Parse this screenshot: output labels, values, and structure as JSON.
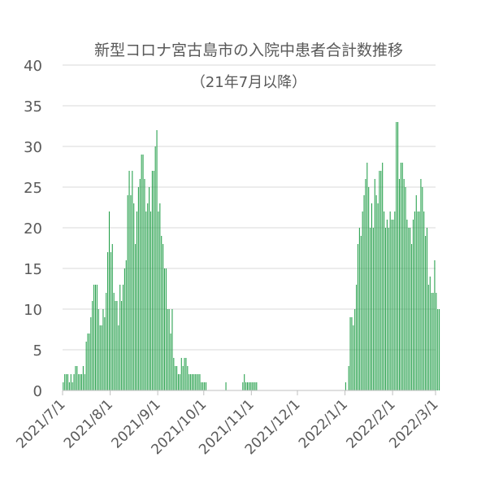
{
  "chart_data": {
    "type": "bar",
    "title": "新型コロナ宮古島市の入院中患者合計数推移",
    "subtitle": "（21年7月以降）",
    "xlabel": "",
    "ylabel": "",
    "ylim": [
      0,
      40
    ],
    "y_ticks": [
      "0",
      "5",
      "10",
      "15",
      "20",
      "25",
      "30",
      "35",
      "40"
    ],
    "x_ticks": [
      "2021/7/1",
      "2021/8/1",
      "2021/9/1",
      "2021/10/1",
      "2021/11/1",
      "2021/12/1",
      "2022/1/1",
      "2022/2/1",
      "2022/3/1"
    ],
    "grid": "horizontal",
    "bar_color": "#1f9d46",
    "x_start_date": "2021-07-01",
    "values": [
      1,
      2,
      2,
      2,
      1,
      2,
      1,
      2,
      3,
      3,
      2,
      2,
      2,
      3,
      2,
      6,
      7,
      7,
      9,
      11,
      13,
      13,
      13,
      10,
      8,
      8,
      10,
      9,
      12,
      17,
      22,
      17,
      18,
      12,
      11,
      11,
      8,
      13,
      11,
      13,
      15,
      16,
      24,
      27,
      24,
      27,
      23,
      18,
      22,
      25,
      26,
      29,
      29,
      26,
      22,
      23,
      25,
      22,
      27,
      27,
      30,
      32,
      22,
      23,
      19,
      18,
      15,
      15,
      10,
      10,
      7,
      10,
      4,
      3,
      3,
      2,
      2,
      4,
      3,
      4,
      4,
      3,
      2,
      2,
      2,
      2,
      2,
      2,
      2,
      2,
      1,
      1,
      1,
      1,
      0,
      0,
      0,
      0,
      0,
      0,
      0,
      0,
      0,
      0,
      0,
      0,
      1,
      0,
      0,
      0,
      0,
      0,
      0,
      0,
      0,
      0,
      0,
      1,
      2,
      1,
      1,
      1,
      1,
      1,
      1,
      1,
      1,
      0,
      0,
      0,
      0,
      0,
      0,
      0,
      0,
      0,
      0,
      0,
      0,
      0,
      0,
      0,
      0,
      0,
      0,
      0,
      0,
      0,
      0,
      0,
      0,
      0,
      0,
      0,
      0,
      0,
      0,
      0,
      0,
      0,
      0,
      0,
      0,
      0,
      0,
      0,
      0,
      0,
      0,
      0,
      0,
      0,
      0,
      0,
      0,
      0,
      0,
      0,
      0,
      0,
      0,
      0,
      0,
      0,
      1,
      0,
      3,
      9,
      9,
      8,
      10,
      13,
      18,
      20,
      19,
      22,
      24,
      26,
      28,
      25,
      20,
      23,
      20,
      26,
      24,
      23,
      27,
      27,
      28,
      22,
      20,
      21,
      20,
      22,
      21,
      21,
      22,
      33,
      33,
      26,
      28,
      28,
      26,
      25,
      21,
      20,
      20,
      18,
      21,
      22,
      24,
      22,
      22,
      26,
      25,
      22,
      19,
      20,
      13,
      14,
      12,
      12,
      16,
      12,
      10,
      10
    ]
  }
}
